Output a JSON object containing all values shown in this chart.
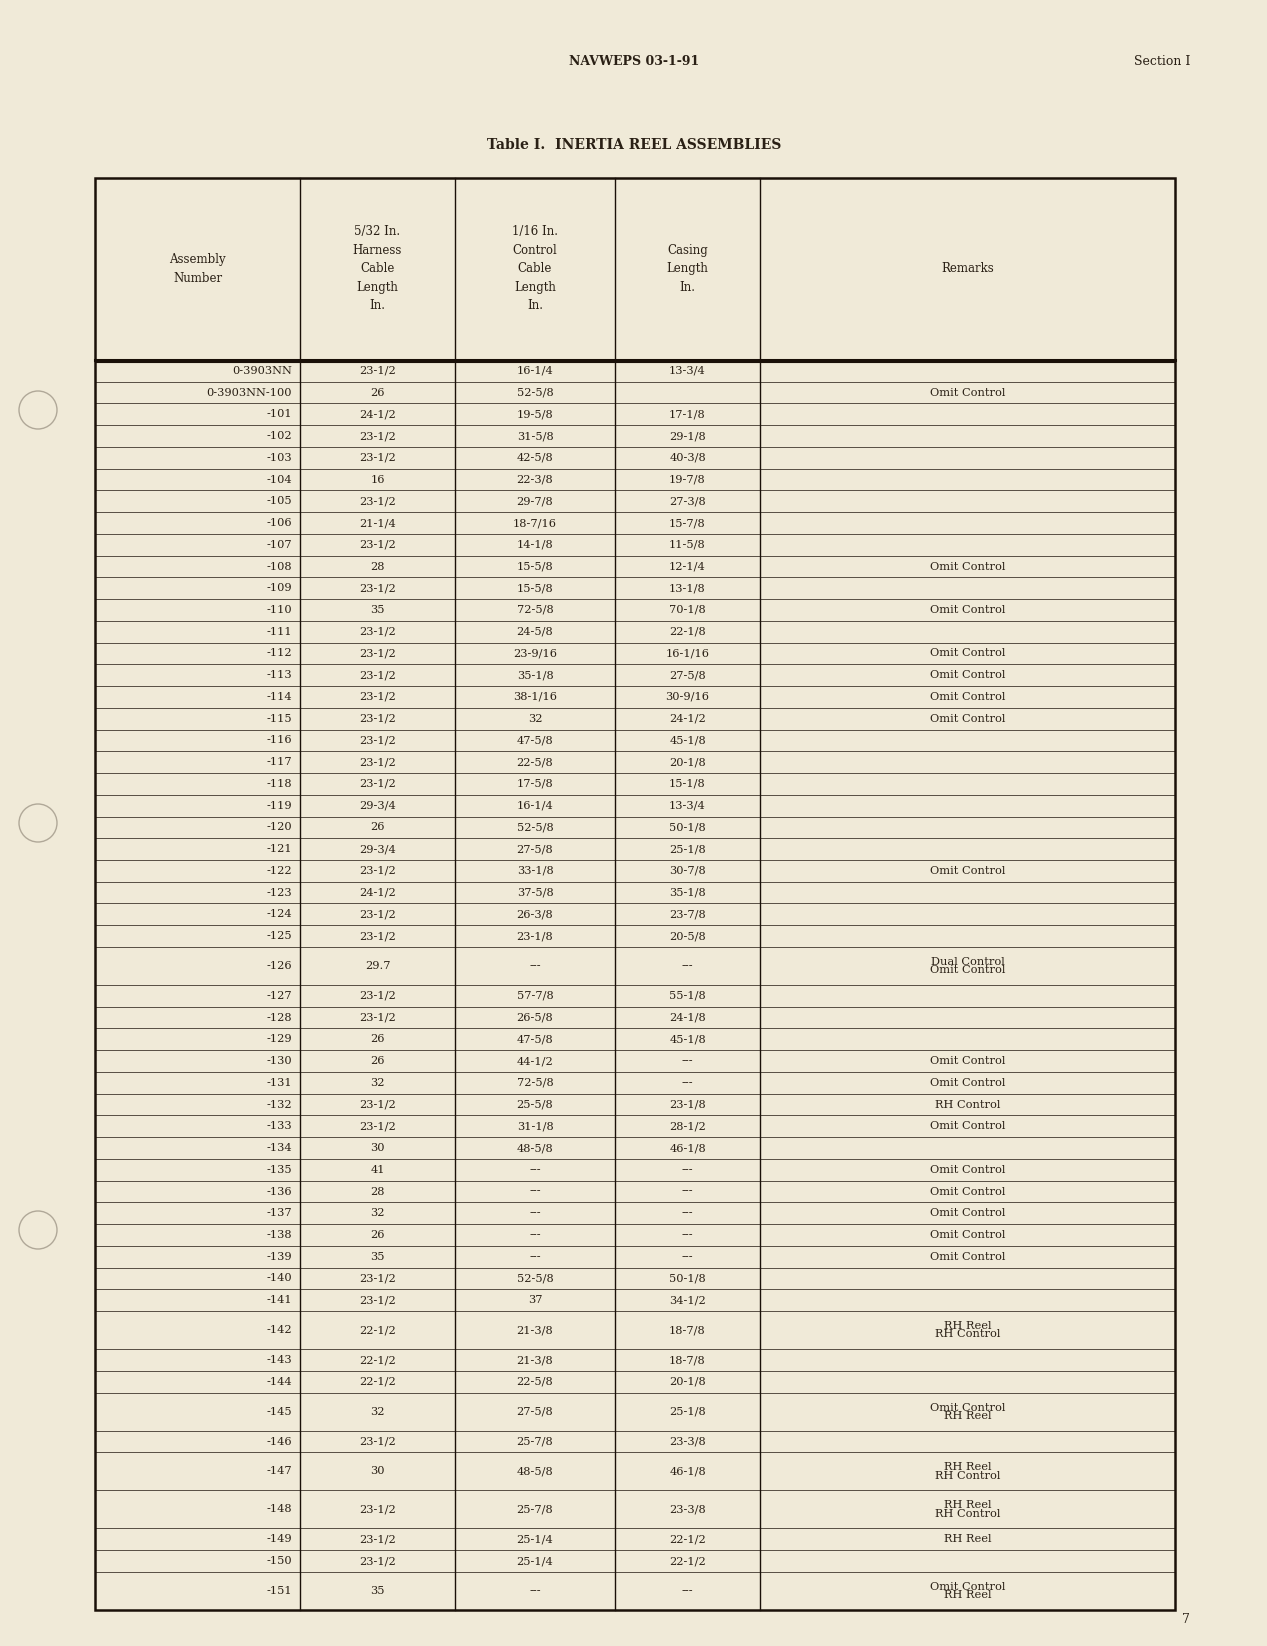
{
  "page_bg": "#f0ead8",
  "header_text": "NAVWEPS 03-1-91",
  "header_right": "Section I",
  "table_title": "Table I.  INERTIA REEL ASSEMBLIES",
  "footer_page": "7",
  "rows": [
    {
      "asm": "0-3903NN",
      "harn": "23-1/2",
      "ctrl": "16-1/4",
      "cas": "13-3/4",
      "rem": [
        ""
      ]
    },
    {
      "asm": "0-3903NN-100",
      "harn": "26",
      "ctrl": "52-5/8",
      "cas": "",
      "rem": [
        "Omit Control"
      ]
    },
    {
      "asm": "-101",
      "harn": "24-1/2",
      "ctrl": "19-5/8",
      "cas": "17-1/8",
      "rem": [
        ""
      ]
    },
    {
      "asm": "-102",
      "harn": "23-1/2",
      "ctrl": "31-5/8",
      "cas": "29-1/8",
      "rem": [
        ""
      ]
    },
    {
      "asm": "-103",
      "harn": "23-1/2",
      "ctrl": "42-5/8",
      "cas": "40-3/8",
      "rem": [
        ""
      ]
    },
    {
      "asm": "-104",
      "harn": "16",
      "ctrl": "22-3/8",
      "cas": "19-7/8",
      "rem": [
        ""
      ]
    },
    {
      "asm": "-105",
      "harn": "23-1/2",
      "ctrl": "29-7/8",
      "cas": "27-3/8",
      "rem": [
        ""
      ]
    },
    {
      "asm": "-106",
      "harn": "21-1/4",
      "ctrl": "18-7/16",
      "cas": "15-7/8",
      "rem": [
        ""
      ]
    },
    {
      "asm": "-107",
      "harn": "23-1/2",
      "ctrl": "14-1/8",
      "cas": "11-5/8",
      "rem": [
        ""
      ]
    },
    {
      "asm": "-108",
      "harn": "28",
      "ctrl": "15-5/8",
      "cas": "12-1/4",
      "rem": [
        "Omit Control"
      ]
    },
    {
      "asm": "-109",
      "harn": "23-1/2",
      "ctrl": "15-5/8",
      "cas": "13-1/8",
      "rem": [
        ""
      ]
    },
    {
      "asm": "-110",
      "harn": "35",
      "ctrl": "72-5/8",
      "cas": "70-1/8",
      "rem": [
        "Omit Control"
      ]
    },
    {
      "asm": "-111",
      "harn": "23-1/2",
      "ctrl": "24-5/8",
      "cas": "22-1/8",
      "rem": [
        ""
      ]
    },
    {
      "asm": "-112",
      "harn": "23-1/2",
      "ctrl": "23-9/16",
      "cas": "16-1/16",
      "rem": [
        "Omit Control"
      ]
    },
    {
      "asm": "-113",
      "harn": "23-1/2",
      "ctrl": "35-1/8",
      "cas": "27-5/8",
      "rem": [
        "Omit Control"
      ]
    },
    {
      "asm": "-114",
      "harn": "23-1/2",
      "ctrl": "38-1/16",
      "cas": "30-9/16",
      "rem": [
        "Omit Control"
      ]
    },
    {
      "asm": "-115",
      "harn": "23-1/2",
      "ctrl": "32",
      "cas": "24-1/2",
      "rem": [
        "Omit Control"
      ]
    },
    {
      "asm": "-116",
      "harn": "23-1/2",
      "ctrl": "47-5/8",
      "cas": "45-1/8",
      "rem": [
        ""
      ]
    },
    {
      "asm": "-117",
      "harn": "23-1/2",
      "ctrl": "22-5/8",
      "cas": "20-1/8",
      "rem": [
        ""
      ]
    },
    {
      "asm": "-118",
      "harn": "23-1/2",
      "ctrl": "17-5/8",
      "cas": "15-1/8",
      "rem": [
        ""
      ]
    },
    {
      "asm": "-119",
      "harn": "29-3/4",
      "ctrl": "16-1/4",
      "cas": "13-3/4",
      "rem": [
        ""
      ]
    },
    {
      "asm": "-120",
      "harn": "26",
      "ctrl": "52-5/8",
      "cas": "50-1/8",
      "rem": [
        ""
      ]
    },
    {
      "asm": "-121",
      "harn": "29-3/4",
      "ctrl": "27-5/8",
      "cas": "25-1/8",
      "rem": [
        ""
      ]
    },
    {
      "asm": "-122",
      "harn": "23-1/2",
      "ctrl": "33-1/8",
      "cas": "30-7/8",
      "rem": [
        "Omit Control"
      ]
    },
    {
      "asm": "-123",
      "harn": "24-1/2",
      "ctrl": "37-5/8",
      "cas": "35-1/8",
      "rem": [
        ""
      ]
    },
    {
      "asm": "-124",
      "harn": "23-1/2",
      "ctrl": "26-3/8",
      "cas": "23-7/8",
      "rem": [
        ""
      ]
    },
    {
      "asm": "-125",
      "harn": "23-1/2",
      "ctrl": "23-1/8",
      "cas": "20-5/8",
      "rem": [
        ""
      ]
    },
    {
      "asm": "-126",
      "harn": "29.7",
      "ctrl": "---",
      "cas": "---",
      "rem": [
        "Dual Control",
        "Omit Control"
      ]
    },
    {
      "asm": "-127",
      "harn": "23-1/2",
      "ctrl": "57-7/8",
      "cas": "55-1/8",
      "rem": [
        ""
      ]
    },
    {
      "asm": "-128",
      "harn": "23-1/2",
      "ctrl": "26-5/8",
      "cas": "24-1/8",
      "rem": [
        ""
      ]
    },
    {
      "asm": "-129",
      "harn": "26",
      "ctrl": "47-5/8",
      "cas": "45-1/8",
      "rem": [
        ""
      ]
    },
    {
      "asm": "-130",
      "harn": "26",
      "ctrl": "44-1/2",
      "cas": "---",
      "rem": [
        "Omit Control"
      ]
    },
    {
      "asm": "-131",
      "harn": "32",
      "ctrl": "72-5/8",
      "cas": "---",
      "rem": [
        "Omit Control"
      ]
    },
    {
      "asm": "-132",
      "harn": "23-1/2",
      "ctrl": "25-5/8",
      "cas": "23-1/8",
      "rem": [
        "RH Control"
      ]
    },
    {
      "asm": "-133",
      "harn": "23-1/2",
      "ctrl": "31-1/8",
      "cas": "28-1/2",
      "rem": [
        "Omit Control"
      ]
    },
    {
      "asm": "-134",
      "harn": "30",
      "ctrl": "48-5/8",
      "cas": "46-1/8",
      "rem": [
        ""
      ]
    },
    {
      "asm": "-135",
      "harn": "41",
      "ctrl": "---",
      "cas": "---",
      "rem": [
        "Omit Control"
      ]
    },
    {
      "asm": "-136",
      "harn": "28",
      "ctrl": "---",
      "cas": "---",
      "rem": [
        "Omit Control"
      ]
    },
    {
      "asm": "-137",
      "harn": "32",
      "ctrl": "---",
      "cas": "---",
      "rem": [
        "Omit Control"
      ]
    },
    {
      "asm": "-138",
      "harn": "26",
      "ctrl": "---",
      "cas": "---",
      "rem": [
        "Omit Control"
      ]
    },
    {
      "asm": "-139",
      "harn": "35",
      "ctrl": "---",
      "cas": "---",
      "rem": [
        "Omit Control"
      ]
    },
    {
      "asm": "-140",
      "harn": "23-1/2",
      "ctrl": "52-5/8",
      "cas": "50-1/8",
      "rem": [
        ""
      ]
    },
    {
      "asm": "-141",
      "harn": "23-1/2",
      "ctrl": "37",
      "cas": "34-1/2",
      "rem": [
        ""
      ]
    },
    {
      "asm": "-142",
      "harn": "22-1/2",
      "ctrl": "21-3/8",
      "cas": "18-7/8",
      "rem": [
        "RH Reel",
        "RH Control"
      ]
    },
    {
      "asm": "-143",
      "harn": "22-1/2",
      "ctrl": "21-3/8",
      "cas": "18-7/8",
      "rem": [
        ""
      ]
    },
    {
      "asm": "-144",
      "harn": "22-1/2",
      "ctrl": "22-5/8",
      "cas": "20-1/8",
      "rem": [
        ""
      ]
    },
    {
      "asm": "-145",
      "harn": "32",
      "ctrl": "27-5/8",
      "cas": "25-1/8",
      "rem": [
        "Omit Control",
        "RH Reel"
      ]
    },
    {
      "asm": "-146",
      "harn": "23-1/2",
      "ctrl": "25-7/8",
      "cas": "23-3/8",
      "rem": [
        ""
      ]
    },
    {
      "asm": "-147",
      "harn": "30",
      "ctrl": "48-5/8",
      "cas": "46-1/8",
      "rem": [
        "RH Reel",
        "RH Control"
      ]
    },
    {
      "asm": "-148",
      "harn": "23-1/2",
      "ctrl": "25-7/8",
      "cas": "23-3/8",
      "rem": [
        "RH Reel",
        "RH Control"
      ]
    },
    {
      "asm": "-149",
      "harn": "23-1/2",
      "ctrl": "25-1/4",
      "cas": "22-1/2",
      "rem": [
        "RH Reel"
      ]
    },
    {
      "asm": "-150",
      "harn": "23-1/2",
      "ctrl": "25-1/4",
      "cas": "22-1/2",
      "rem": [
        ""
      ]
    },
    {
      "asm": "-151",
      "harn": "35",
      "ctrl": "---",
      "cas": "---",
      "rem": [
        "Omit Control",
        "RH Reel"
      ]
    }
  ]
}
